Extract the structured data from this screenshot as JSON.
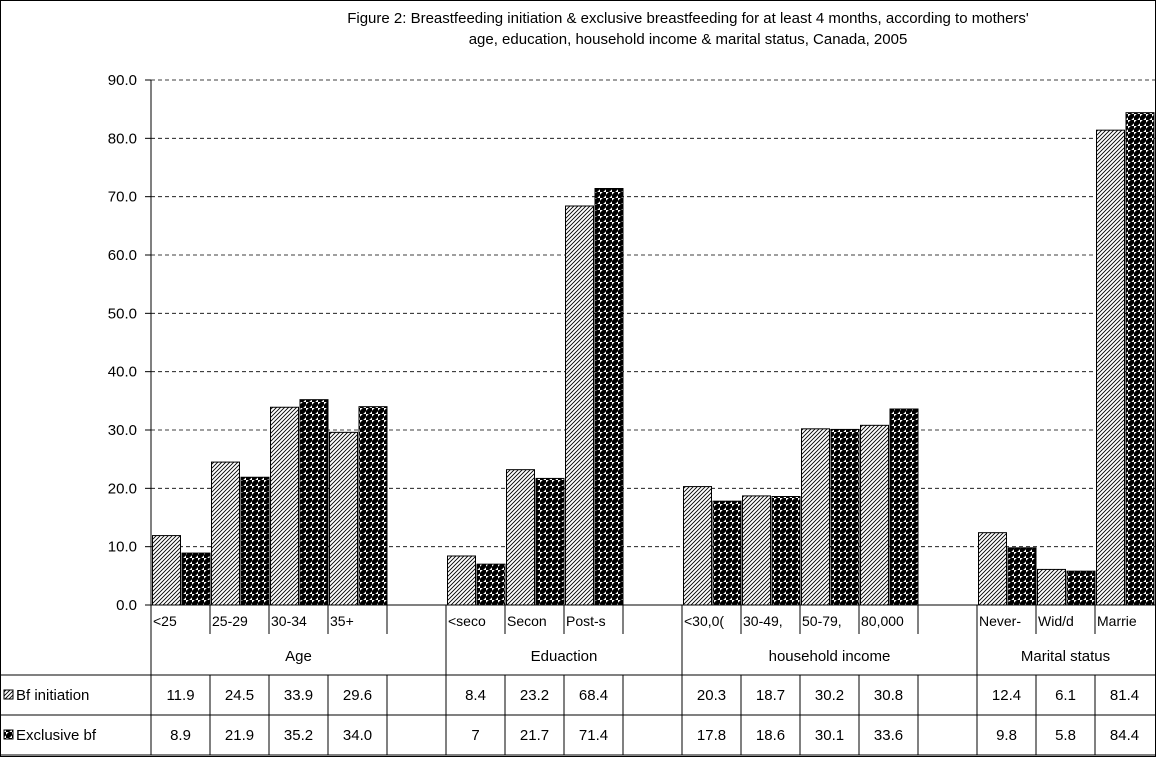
{
  "chart_data": {
    "type": "bar",
    "title": "Figure 2: Breastfeeding initiation & exclusive breastfeeding for at least 4 months, according to mothers'",
    "subtitle": "age, education, household income & marital status, Canada, 2005",
    "ylim": [
      0,
      90
    ],
    "yticks": [
      "0.0",
      "10.0",
      "20.0",
      "30.0",
      "40.0",
      "50.0",
      "60.0",
      "70.0",
      "80.0",
      "90.0"
    ],
    "grid": true,
    "legend_position": "data-table-left",
    "categories": [
      "<25",
      "25-29",
      "30-34",
      "35+",
      "",
      "<seco",
      "Secon",
      "Post-s",
      "",
      "<30,0(",
      "30-49,",
      "50-79,",
      "80,000",
      "",
      "Never-",
      "Wid/d",
      "Marrie"
    ],
    "groups": [
      {
        "label": "Age",
        "start": 0,
        "span": 5
      },
      {
        "label": "Eduaction",
        "start": 5,
        "span": 4
      },
      {
        "label": "household income",
        "start": 9,
        "span": 5
      },
      {
        "label": "Marital status",
        "start": 14,
        "span": 3
      }
    ],
    "series": [
      {
        "name": "Bf initiation",
        "values": [
          11.9,
          24.5,
          33.9,
          29.6,
          null,
          8.4,
          23.2,
          68.4,
          null,
          20.3,
          18.7,
          30.2,
          30.8,
          null,
          12.4,
          6.1,
          81.4
        ],
        "labels": [
          "11.9",
          "24.5",
          "33.9",
          "29.6",
          "",
          "8.4",
          "23.2",
          "68.4",
          "",
          "20.3",
          "18.7",
          "30.2",
          "30.8",
          "",
          "12.4",
          "6.1",
          "81.4"
        ]
      },
      {
        "name": "Exclusive bf",
        "values": [
          8.9,
          21.9,
          35.2,
          34.0,
          null,
          7,
          21.7,
          71.4,
          null,
          17.8,
          18.6,
          30.1,
          33.6,
          null,
          9.8,
          5.8,
          84.4
        ],
        "labels": [
          "8.9",
          "21.9",
          "35.2",
          "34.0",
          "",
          "7",
          "21.7",
          "71.4",
          "",
          "17.8",
          "18.6",
          "30.1",
          "33.6",
          "",
          "9.8",
          "5.8",
          "84.4"
        ]
      }
    ]
  }
}
